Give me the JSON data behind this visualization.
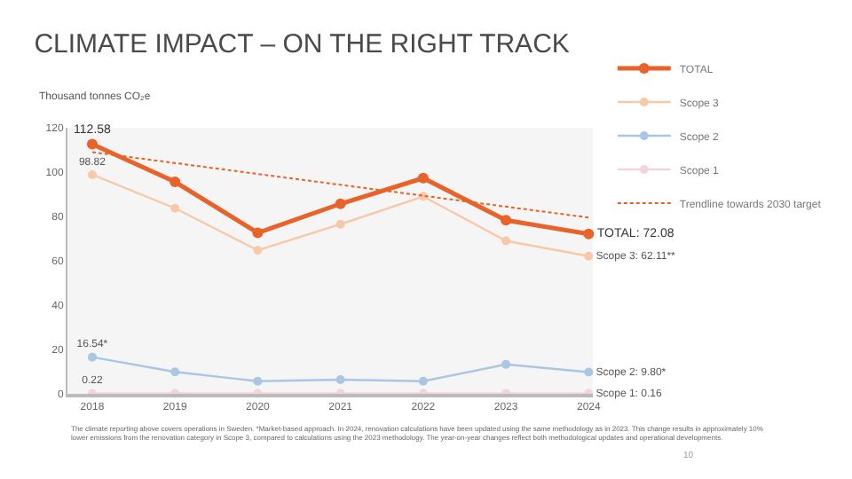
{
  "chart_data": {
    "type": "line",
    "title": "CLIMATE IMPACT – ON THE RIGHT TRACK",
    "ylabel": "Thousand tonnes CO₂e",
    "categories": [
      "2018",
      "2019",
      "2020",
      "2021",
      "2022",
      "2023",
      "2024"
    ],
    "series": [
      {
        "name": "TOTAL",
        "color": "#e8622a",
        "values": [
          112.58,
          95.6,
          72.6,
          85.7,
          97.3,
          78.3,
          72.08
        ],
        "value_labels": [
          "112.58",
          null,
          null,
          null,
          null,
          null,
          "TOTAL: 72.08"
        ]
      },
      {
        "name": "Scope 3",
        "color": "#f8c9a8",
        "values": [
          98.82,
          83.7,
          64.7,
          76.5,
          89,
          69,
          62.11
        ],
        "value_labels": [
          "98.82",
          null,
          null,
          null,
          null,
          null,
          "Scope 3: 62.11**"
        ]
      },
      {
        "name": "Scope 2",
        "color": "#a9c6e3",
        "values": [
          16.54,
          9.9,
          5.7,
          6.4,
          5.7,
          13.3,
          9.8
        ],
        "value_labels": [
          "16.54*",
          null,
          null,
          null,
          null,
          null,
          "Scope 2: 9.80*"
        ]
      },
      {
        "name": "Scope 1",
        "color": "#f4d3dc",
        "values": [
          0.22,
          0.2,
          0.2,
          0.2,
          0.2,
          0.2,
          0.16
        ],
        "value_labels": [
          "0.22",
          null,
          null,
          null,
          null,
          null,
          "Scope 1: 0.16"
        ]
      },
      {
        "name": "Trendline towards 2030 target",
        "color": "#e8622a",
        "line_style": "dotted",
        "marker": "none",
        "values": [
          109,
          null,
          null,
          null,
          null,
          null,
          79.5
        ]
      }
    ],
    "ylim": [
      0,
      120
    ],
    "yticks": [
      0,
      20,
      40,
      60,
      80,
      100,
      120
    ],
    "grid": false,
    "legend": "top right",
    "marker": "circle",
    "line_style": "solid",
    "annotations": [
      "The climate reporting above covers operations in Sweden. *Market-based approach. In 2024, renovation calculations have been updated using the same methodology as in 2023. This change results in approximately 10% lower emissions from the renovation category in Scope 3, compared to calculations using the 2023 methodology. The year-on-year changes reflect both methodological updates and operational developments.",
      "10"
    ]
  }
}
